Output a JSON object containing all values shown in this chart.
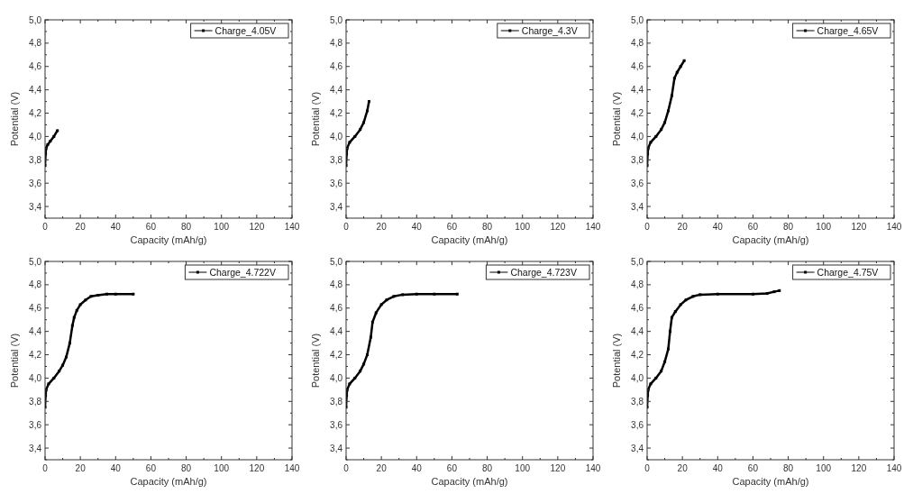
{
  "chart_data": [
    {
      "type": "line",
      "xlabel": "Capacity (mAh/g)",
      "ylabel": "Potential (V)",
      "xlim": [
        0,
        140
      ],
      "xticks": [
        0,
        20,
        40,
        60,
        80,
        100,
        120,
        140
      ],
      "ylim": [
        3.3,
        5.0
      ],
      "yticks": [
        {
          "value": 3.4,
          "label": "3,4"
        },
        {
          "value": 3.6,
          "label": "3,6"
        },
        {
          "value": 3.8,
          "label": "3,8"
        },
        {
          "value": 4.0,
          "label": "4,0"
        },
        {
          "value": 4.2,
          "label": "4,2"
        },
        {
          "value": 4.4,
          "label": "4,4"
        },
        {
          "value": 4.6,
          "label": "4,6"
        },
        {
          "value": 4.8,
          "label": "4,8"
        },
        {
          "value": 5.0,
          "label": "5,0"
        }
      ],
      "legend": "top right",
      "marker": "square",
      "grid": false,
      "series": [
        {
          "name": "Charge_4.05V",
          "color": "#000000",
          "x": [
            0,
            0.3,
            0.6,
            1.5,
            3,
            5,
            7
          ],
          "values": [
            3.75,
            3.85,
            3.9,
            3.93,
            3.96,
            4.0,
            4.05
          ]
        }
      ]
    },
    {
      "type": "line",
      "xlabel": "Capacity (mAh/g)",
      "ylabel": "Potential (V)",
      "xlim": [
        0,
        140
      ],
      "xticks": [
        0,
        20,
        40,
        60,
        80,
        100,
        120,
        140
      ],
      "ylim": [
        3.3,
        5.0
      ],
      "yticks": [
        {
          "value": 3.4,
          "label": "3,4"
        },
        {
          "value": 3.6,
          "label": "3,6"
        },
        {
          "value": 3.8,
          "label": "3,8"
        },
        {
          "value": 4.0,
          "label": "4,0"
        },
        {
          "value": 4.2,
          "label": "4,2"
        },
        {
          "value": 4.4,
          "label": "4,4"
        },
        {
          "value": 4.6,
          "label": "4,6"
        },
        {
          "value": 4.8,
          "label": "4,8"
        },
        {
          "value": 5.0,
          "label": "5,0"
        }
      ],
      "legend": "top right",
      "marker": "square",
      "grid": false,
      "series": [
        {
          "name": "Charge_4.3V",
          "color": "#000000",
          "x": [
            0,
            0.3,
            0.6,
            2,
            5,
            8,
            10,
            12,
            13
          ],
          "values": [
            3.75,
            3.85,
            3.9,
            3.95,
            4.0,
            4.06,
            4.12,
            4.22,
            4.3
          ]
        }
      ]
    },
    {
      "type": "line",
      "xlabel": "Capacity (mAh/g)",
      "ylabel": "Potential (V)",
      "xlim": [
        0,
        140
      ],
      "xticks": [
        0,
        20,
        40,
        60,
        80,
        100,
        120,
        140
      ],
      "ylim": [
        3.3,
        5.0
      ],
      "yticks": [
        {
          "value": 3.4,
          "label": "3,4"
        },
        {
          "value": 3.6,
          "label": "3,6"
        },
        {
          "value": 3.8,
          "label": "3,8"
        },
        {
          "value": 4.0,
          "label": "4,0"
        },
        {
          "value": 4.2,
          "label": "4,2"
        },
        {
          "value": 4.4,
          "label": "4,4"
        },
        {
          "value": 4.6,
          "label": "4,6"
        },
        {
          "value": 4.8,
          "label": "4,8"
        },
        {
          "value": 5.0,
          "label": "5,0"
        }
      ],
      "legend": "top right",
      "marker": "square",
      "grid": false,
      "series": [
        {
          "name": "Charge_4.65V",
          "color": "#000000",
          "x": [
            0,
            0.3,
            0.6,
            2,
            5,
            8,
            10,
            12,
            14,
            15.5,
            17,
            19,
            21
          ],
          "values": [
            3.75,
            3.85,
            3.9,
            3.95,
            4.0,
            4.06,
            4.12,
            4.22,
            4.35,
            4.5,
            4.55,
            4.6,
            4.65
          ]
        }
      ]
    },
    {
      "type": "line",
      "xlabel": "Capacity (mAh/g)",
      "ylabel": "Potential (V)",
      "xlim": [
        0,
        140
      ],
      "xticks": [
        0,
        20,
        40,
        60,
        80,
        100,
        120,
        140
      ],
      "ylim": [
        3.3,
        5.0
      ],
      "yticks": [
        {
          "value": 3.4,
          "label": "3,4"
        },
        {
          "value": 3.6,
          "label": "3,6"
        },
        {
          "value": 3.8,
          "label": "3,8"
        },
        {
          "value": 4.0,
          "label": "4,0"
        },
        {
          "value": 4.2,
          "label": "4,2"
        },
        {
          "value": 4.4,
          "label": "4,4"
        },
        {
          "value": 4.6,
          "label": "4,6"
        },
        {
          "value": 4.8,
          "label": "4,8"
        },
        {
          "value": 5.0,
          "label": "5,0"
        }
      ],
      "legend": "top right",
      "marker": "square",
      "grid": false,
      "series": [
        {
          "name": "Charge_4.722V",
          "color": "#000000",
          "x": [
            0,
            0.3,
            0.6,
            2,
            5,
            8,
            10,
            12,
            14,
            15.5,
            16.5,
            18,
            20,
            23,
            26,
            30,
            35,
            40,
            50
          ],
          "values": [
            3.75,
            3.85,
            3.9,
            3.95,
            4.0,
            4.06,
            4.11,
            4.18,
            4.3,
            4.45,
            4.52,
            4.58,
            4.63,
            4.67,
            4.7,
            4.71,
            4.72,
            4.72,
            4.72
          ]
        }
      ]
    },
    {
      "type": "line",
      "xlabel": "Capacity (mAh/g)",
      "ylabel": "Potential (V)",
      "xlim": [
        0,
        140
      ],
      "xticks": [
        0,
        20,
        40,
        60,
        80,
        100,
        120,
        140
      ],
      "ylim": [
        3.3,
        5.0
      ],
      "yticks": [
        {
          "value": 3.4,
          "label": "3,4"
        },
        {
          "value": 3.6,
          "label": "3,6"
        },
        {
          "value": 3.8,
          "label": "3,8"
        },
        {
          "value": 4.0,
          "label": "4,0"
        },
        {
          "value": 4.2,
          "label": "4,2"
        },
        {
          "value": 4.4,
          "label": "4,4"
        },
        {
          "value": 4.6,
          "label": "4,6"
        },
        {
          "value": 4.8,
          "label": "4,8"
        },
        {
          "value": 5.0,
          "label": "5,0"
        }
      ],
      "legend": "top right",
      "marker": "square",
      "grid": false,
      "series": [
        {
          "name": "Charge_4.723V",
          "color": "#000000",
          "x": [
            0,
            0.3,
            0.6,
            2,
            5,
            8,
            10,
            12,
            14,
            15,
            17,
            20,
            23,
            27,
            32,
            40,
            50,
            63
          ],
          "values": [
            3.75,
            3.85,
            3.9,
            3.95,
            4.0,
            4.06,
            4.12,
            4.2,
            4.35,
            4.48,
            4.56,
            4.63,
            4.67,
            4.7,
            4.715,
            4.72,
            4.72,
            4.72
          ]
        }
      ]
    },
    {
      "type": "line",
      "xlabel": "Capacity (mAh/g)",
      "ylabel": "Potential (V)",
      "xlim": [
        0,
        140
      ],
      "xticks": [
        0,
        20,
        40,
        60,
        80,
        100,
        120,
        140
      ],
      "ylim": [
        3.3,
        5.0
      ],
      "yticks": [
        {
          "value": 3.4,
          "label": "3,4"
        },
        {
          "value": 3.6,
          "label": "3,6"
        },
        {
          "value": 3.8,
          "label": "3,8"
        },
        {
          "value": 4.0,
          "label": "4,0"
        },
        {
          "value": 4.2,
          "label": "4,2"
        },
        {
          "value": 4.4,
          "label": "4,4"
        },
        {
          "value": 4.6,
          "label": "4,6"
        },
        {
          "value": 4.8,
          "label": "4,8"
        },
        {
          "value": 5.0,
          "label": "5,0"
        }
      ],
      "legend": "top right",
      "marker": "square",
      "grid": false,
      "series": [
        {
          "name": "Charge_4.75V",
          "color": "#000000",
          "x": [
            0,
            0.3,
            0.6,
            2,
            5,
            8,
            10,
            12,
            13,
            14,
            16,
            19,
            22,
            26,
            30,
            40,
            60,
            68,
            72,
            75
          ],
          "values": [
            3.75,
            3.85,
            3.9,
            3.95,
            4.0,
            4.06,
            4.14,
            4.25,
            4.4,
            4.52,
            4.57,
            4.63,
            4.67,
            4.7,
            4.715,
            4.72,
            4.72,
            4.725,
            4.74,
            4.75
          ]
        }
      ]
    }
  ]
}
